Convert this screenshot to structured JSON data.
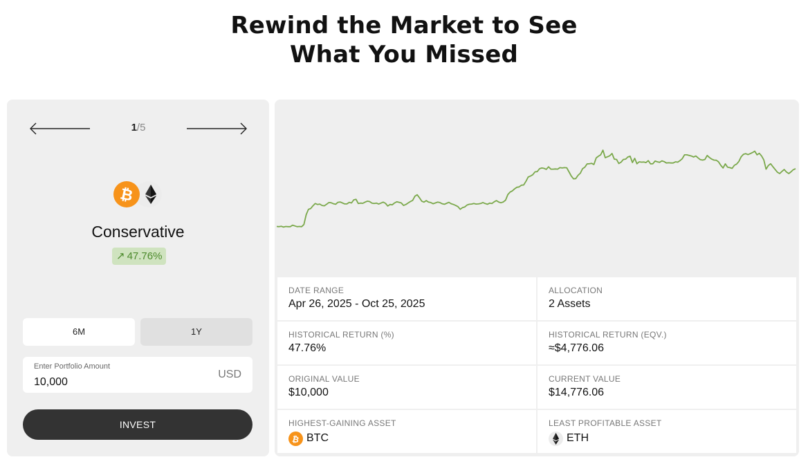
{
  "header": {
    "title_line1": "Rewind the Market to See",
    "title_line2": "What You Missed"
  },
  "carousel": {
    "current": "1",
    "separator": "/",
    "total": "5"
  },
  "strategy": {
    "name": "Conservative",
    "return_arrow": "↗",
    "return": "47.76%",
    "coins": [
      "btc-icon",
      "eth-icon"
    ]
  },
  "range_tabs": [
    "6M",
    "1Y"
  ],
  "range_selected": "1Y",
  "amount": {
    "label": "Enter Portfolio Amount",
    "value": "10,000",
    "unit": "USD"
  },
  "invest_label": "INVEST",
  "colors": {
    "btc": "#f7931a",
    "line": "#7aa84a",
    "badge_bg": "#cfe3bf",
    "badge_text": "#4c8a2c",
    "invest_bg": "#333333"
  },
  "stats": {
    "date_range": {
      "label": "DATE RANGE",
      "value": "Apr 26, 2025 - Oct 25, 2025"
    },
    "allocation": {
      "label": "ALLOCATION",
      "value": "2 Assets"
    },
    "hist_return_pct": {
      "label": "HISTORICAL RETURN (%)",
      "value": "47.76%"
    },
    "hist_return_eqv": {
      "label": "HISTORICAL RETURN (EQV.)",
      "value": "≈$4,776.06"
    },
    "original_value": {
      "label": "ORIGINAL VALUE",
      "value": "$10,000"
    },
    "current_value": {
      "label": "CURRENT VALUE",
      "value": "$14,776.06"
    },
    "highest_gaining": {
      "label": "HIGHEST-GAINING ASSET",
      "asset": "BTC",
      "icon": "btc-icon"
    },
    "least_profitable": {
      "label": "LEAST PROFITABLE ASSET",
      "asset": "ETH",
      "icon": "eth-icon"
    }
  },
  "chart_data": {
    "type": "line",
    "title": "",
    "xlabel": "",
    "ylabel": "",
    "grid": false,
    "series": [
      {
        "values": [
          0.9,
          0.8,
          1.0,
          0.6,
          0.9,
          0.8,
          0.8,
          1.6,
          1.2,
          0.8,
          0.9,
          0.8,
          1.9,
          7.0,
          9.8,
          10.2,
          11.6,
          12.8,
          12.3,
          12.5,
          11.8,
          11.6,
          12.4,
          13.3,
          13.2,
          12.7,
          12.4,
          13.4,
          13.6,
          13.1,
          12.6,
          12.6,
          13.4,
          13.1,
          14.7,
          15.0,
          12.8,
          13.0,
          12.9,
          13.5,
          14.0,
          13.8,
          13.0,
          12.8,
          13.0,
          12.5,
          13.0,
          13.5,
          12.9,
          11.5,
          12.3,
          12.1,
          13.1,
          13.7,
          13.4,
          13.1,
          11.8,
          12.3,
          13.1,
          13.8,
          14.4,
          16.6,
          17.3,
          15.8,
          14.0,
          13.5,
          14.3,
          13.5,
          13.3,
          12.7,
          13.1,
          13.5,
          13.3,
          12.7,
          12.4,
          12.9,
          13.4,
          12.7,
          12.3,
          11.8,
          11.2,
          9.8,
          10.7,
          11.0,
          12.0,
          12.4,
          12.5,
          12.8,
          12.5,
          12.6,
          12.8,
          13.3,
          12.8,
          12.4,
          13.0,
          12.8,
          13.7,
          14.3,
          13.5,
          13.2,
          13.6,
          14.5,
          17.4,
          18.7,
          19.3,
          20.4,
          21.2,
          21.4,
          22.3,
          22.4,
          24.3,
          26.5,
          27.0,
          27.7,
          29.2,
          29.3,
          30.8,
          31.2,
          31.0,
          30.5,
          31.8,
          30.6,
          30.6,
          30.7,
          30.6,
          31.4,
          31.2,
          31.4,
          31.3,
          29.2,
          27.0,
          25.6,
          25.7,
          27.4,
          28.5,
          30.8,
          31.6,
          33.3,
          33.4,
          33.6,
          33.0,
          36.4,
          37.3,
          38.0,
          40.4,
          36.5,
          37.0,
          37.5,
          38.7,
          35.8,
          35.6,
          33.5,
          34.2,
          35.6,
          35.8,
          36.9,
          37.3,
          34.0,
          36.2,
          33.4,
          34.4,
          34.2,
          34.3,
          34.0,
          35.0,
          33.3,
          33.4,
          34.8,
          34.4,
          34.1,
          34.9,
          34.5,
          33.8,
          33.9,
          33.8,
          33.8,
          34.4,
          34.2,
          35.0,
          36.0,
          38.0,
          38.0,
          37.7,
          37.4,
          36.9,
          37.4,
          36.4,
          35.5,
          35.3,
          35.6,
          37.7,
          36.6,
          35.8,
          35.3,
          35.2,
          34.4,
          32.6,
          31.2,
          33.3,
          31.6,
          31.4,
          31.0,
          32.6,
          33.2,
          34.6,
          37.0,
          38.3,
          38.6,
          38.1,
          38.6,
          39.2,
          39.9,
          38.0,
          38.8,
          37.4,
          35.4,
          30.6,
          32.5,
          33.4,
          31.9,
          30.4,
          29.0,
          28.3,
          29.4,
          30.4,
          29.1,
          28.3,
          29.2,
          30.3,
          30.8
        ]
      }
    ],
    "start_date": "Apr 26, 2025",
    "end_date": "Oct 25, 2025",
    "ylim": [
      -5,
      48
    ]
  }
}
